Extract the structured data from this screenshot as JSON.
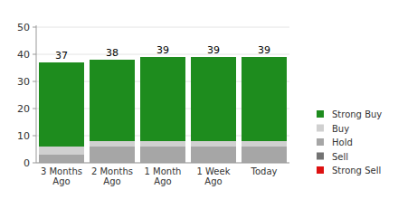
{
  "chart_data": {
    "type": "bar",
    "stacked": true,
    "grid": true,
    "legend": "right",
    "categories": [
      "3 Months Ago",
      "2 Months Ago",
      "1 Month Ago",
      "1 Week Ago",
      "Today"
    ],
    "totals": [
      37,
      38,
      39,
      39,
      39
    ],
    "series": [
      {
        "name": "Strong Buy",
        "color": "#1e8c1e",
        "values": [
          31,
          30,
          31,
          31,
          31
        ]
      },
      {
        "name": "Buy",
        "color": "#d0d0d0",
        "values": [
          3,
          2,
          2,
          2,
          2
        ]
      },
      {
        "name": "Hold",
        "color": "#a6a6a6",
        "values": [
          3,
          6,
          6,
          6,
          6
        ]
      },
      {
        "name": "Sell",
        "color": "#737373",
        "values": [
          0,
          0,
          0,
          0,
          0
        ]
      },
      {
        "name": "Strong Sell",
        "color": "#dd1111",
        "values": [
          0,
          0,
          0,
          0,
          0
        ]
      }
    ],
    "ylim": [
      0,
      50
    ],
    "yticks": [
      0,
      10,
      20,
      30,
      40,
      50
    ]
  }
}
